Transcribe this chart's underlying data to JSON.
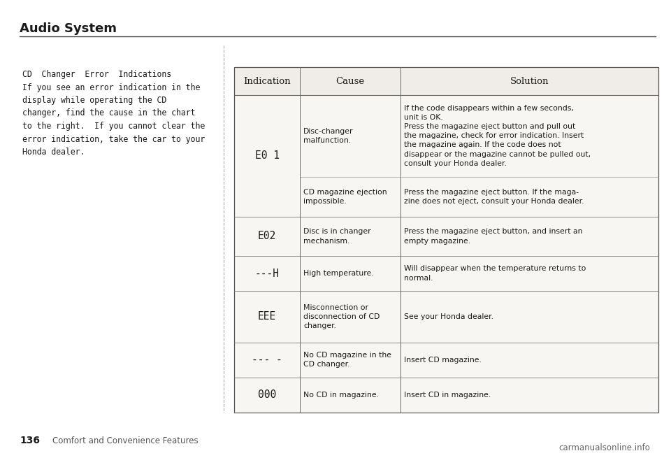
{
  "title": "Audio System",
  "page_number": "136",
  "page_label": "Comfort and Convenience Features",
  "watermark": "carmanualsonline.info",
  "left_text_all": "CD  Changer  Error  Indications\nIf you see an error indication in the\ndisplay while operating the CD\nchanger, find the cause in the chart\nto the right.  If you cannot clear the\nerror indication, take the car to your\nHonda dealer.",
  "table_headers": [
    "Indication",
    "Cause",
    "Solution"
  ],
  "rows": [
    {
      "indication": "E0 1",
      "causes": [
        "Disc-changer\nmalfunction.",
        "CD magazine ejection\nimpossible."
      ],
      "solutions": [
        "If the code disappears within a few seconds,\nunit is OK.\nPress the magazine eject button and pull out\nthe magazine, check for error indication. Insert\nthe magazine again. If the code does not\ndisappear or the magazine cannot be pulled out,\nconsult your Honda dealer.",
        "Press the magazine eject button. If the maga-\nzine does not eject, consult your Honda dealer."
      ],
      "sub_split": [
        0.67,
        0.33
      ]
    },
    {
      "indication": "E02",
      "causes": [
        "Disc is in changer\nmechanism."
      ],
      "solutions": [
        "Press the magazine eject button, and insert an\nempty magazine."
      ],
      "sub_split": [
        1.0
      ]
    },
    {
      "indication": "---H",
      "causes": [
        "High temperature."
      ],
      "solutions": [
        "Will disappear when the temperature returns to\nnormal."
      ],
      "sub_split": [
        1.0
      ]
    },
    {
      "indication": "EEE",
      "causes": [
        "Misconnection or\ndisconnection of CD\nchanger."
      ],
      "solutions": [
        "See your Honda dealer."
      ],
      "sub_split": [
        1.0
      ]
    },
    {
      "indication": "--- -",
      "causes": [
        "No CD magazine in the\nCD changer."
      ],
      "solutions": [
        "Insert CD magazine."
      ],
      "sub_split": [
        1.0
      ]
    },
    {
      "indication": "000",
      "causes": [
        "No CD in magazine."
      ],
      "solutions": [
        "Insert CD in magazine."
      ],
      "sub_split": [
        1.0
      ]
    }
  ],
  "bg_color": "#ffffff",
  "table_bg": "#ffffff",
  "border_color": "#555555",
  "text_color": "#1a1a1a",
  "title_fontsize": 13,
  "body_fontsize": 8.3,
  "header_fontsize": 9.5,
  "lcd_fontsize": 10.5,
  "cell_fontsize": 7.8
}
